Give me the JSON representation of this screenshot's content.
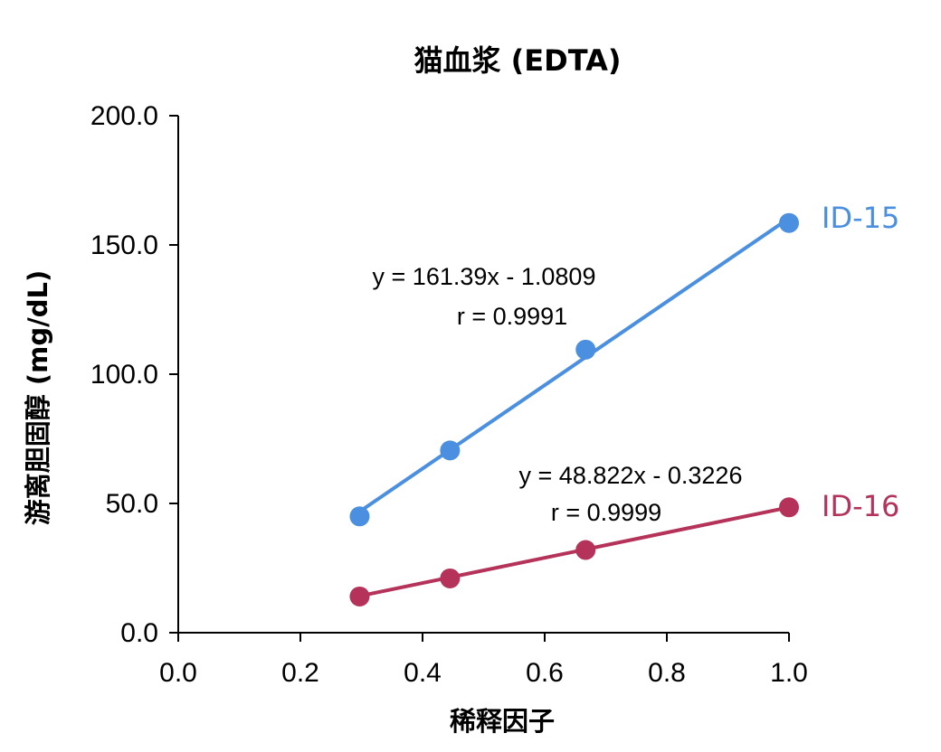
{
  "chart_data": {
    "type": "scatter",
    "title": "猫血浆 (EDTA)",
    "xlabel": "稀释因子",
    "ylabel": "游离胆固醇 (mg/dL)",
    "xlim": [
      0.0,
      1.0
    ],
    "ylim": [
      0.0,
      200.0
    ],
    "x_ticks": [
      "0.0",
      "0.2",
      "0.4",
      "0.6",
      "0.8",
      "1.0"
    ],
    "y_ticks": [
      "0.0",
      "50.0",
      "100.0",
      "150.0",
      "200.0"
    ],
    "grid": false,
    "series": [
      {
        "name": "ID-15",
        "color": "#4a8fe0",
        "points": [
          {
            "x": 0.297,
            "y": 45.0
          },
          {
            "x": 0.445,
            "y": 70.5
          },
          {
            "x": 0.667,
            "y": 109.5
          },
          {
            "x": 1.0,
            "y": 158.5
          }
        ],
        "trendline": {
          "slope": 161.39,
          "intercept": -1.0809
        },
        "equation": "y = 161.39x - 1.0809",
        "r_text": "r = 0.9991"
      },
      {
        "name": "ID-16",
        "color": "#b5335a",
        "points": [
          {
            "x": 0.297,
            "y": 14.0
          },
          {
            "x": 0.445,
            "y": 21.0
          },
          {
            "x": 0.667,
            "y": 32.0
          },
          {
            "x": 1.0,
            "y": 48.5
          }
        ],
        "trendline": {
          "slope": 48.822,
          "intercept": -0.3226
        },
        "equation": "y = 48.822x - 0.3226",
        "r_text": "r = 0.9999"
      }
    ]
  }
}
